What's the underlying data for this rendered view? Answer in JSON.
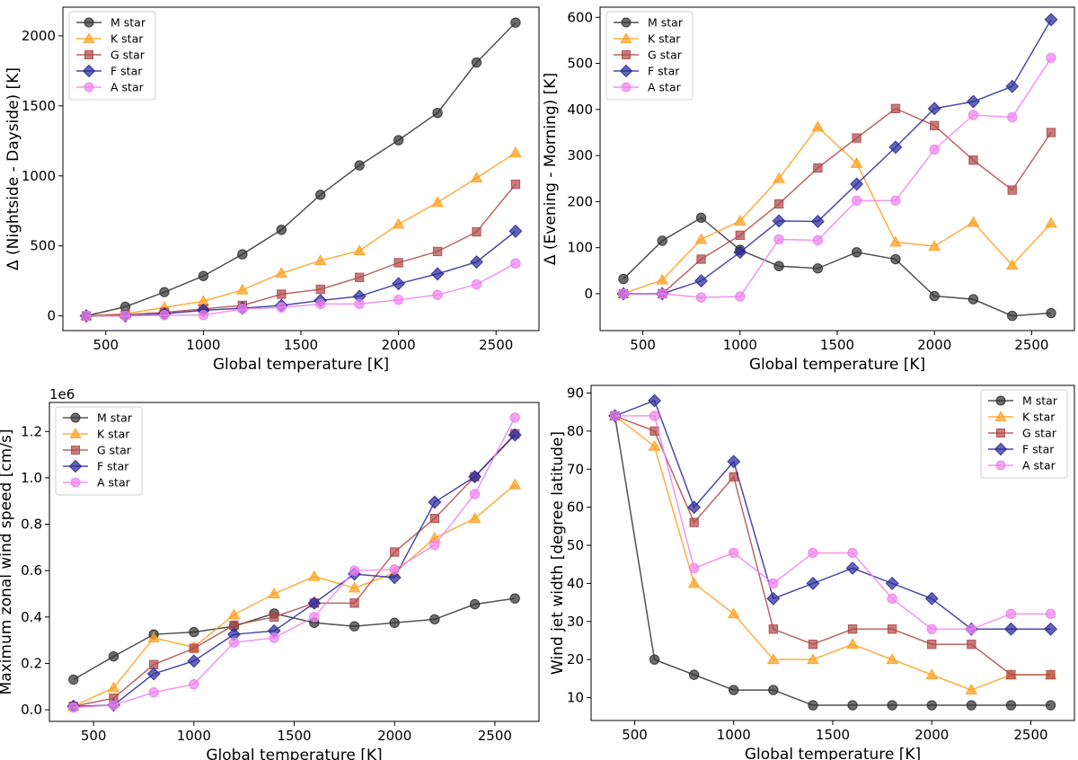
{
  "figure": {
    "series_styles": [
      {
        "name": "M star",
        "color": "#333333",
        "marker": "circle"
      },
      {
        "name": "K star",
        "color": "#ff9f1c",
        "marker": "triangle"
      },
      {
        "name": "G star",
        "color": "#b04a4a",
        "marker": "square"
      },
      {
        "name": "F star",
        "color": "#2a2a9a",
        "marker": "diamond"
      },
      {
        "name": "A star",
        "color": "#ee82ee",
        "marker": "circle"
      }
    ]
  },
  "chart_data": [
    {
      "type": "line",
      "title": "",
      "xlabel": "Global temperature [K]",
      "ylabel": "Δ (Nightside - Dayside) [K]",
      "xlim": [
        280,
        2720
      ],
      "ylim": [
        -105,
        2205
      ],
      "xticks": [
        500,
        1000,
        1500,
        2000,
        2500
      ],
      "yticks": [
        0,
        500,
        1000,
        1500,
        2000
      ],
      "offset_text": "",
      "legend_position": "upper-left",
      "x": [
        400,
        600,
        800,
        1000,
        1200,
        1400,
        1600,
        1800,
        2000,
        2200,
        2400,
        2600
      ],
      "series": [
        {
          "name": "M star",
          "values": [
            0,
            65,
            170,
            285,
            440,
            615,
            865,
            1075,
            1255,
            1450,
            1810,
            2095
          ]
        },
        {
          "name": "K star",
          "values": [
            0,
            15,
            60,
            105,
            185,
            305,
            395,
            465,
            655,
            810,
            985,
            1165
          ]
        },
        {
          "name": "G star",
          "values": [
            0,
            10,
            25,
            50,
            75,
            155,
            190,
            275,
            380,
            460,
            600,
            940
          ]
        },
        {
          "name": "F star",
          "values": [
            0,
            0,
            15,
            40,
            55,
            75,
            110,
            140,
            230,
            300,
            385,
            605
          ]
        },
        {
          "name": "A star",
          "values": [
            0,
            0,
            5,
            5,
            50,
            60,
            85,
            85,
            115,
            150,
            225,
            375
          ]
        }
      ]
    },
    {
      "type": "line",
      "title": "",
      "xlabel": "Global temperature [K]",
      "ylabel": "Δ (Evening - Morning) [K]",
      "xlim": [
        280,
        2720
      ],
      "ylim": [
        -80,
        622
      ],
      "xticks": [
        500,
        1000,
        1500,
        2000,
        2500
      ],
      "yticks": [
        0,
        100,
        200,
        300,
        400,
        500,
        600
      ],
      "offset_text": "",
      "legend_position": "upper-left",
      "x": [
        400,
        600,
        800,
        1000,
        1200,
        1400,
        1600,
        1800,
        2000,
        2200,
        2400,
        2600
      ],
      "series": [
        {
          "name": "M star",
          "values": [
            32,
            115,
            165,
            95,
            60,
            55,
            90,
            75,
            -5,
            -12,
            -48,
            -42
          ]
        },
        {
          "name": "K star",
          "values": [
            0,
            30,
            118,
            158,
            250,
            362,
            283,
            112,
            103,
            155,
            62,
            153
          ]
        },
        {
          "name": "G star",
          "values": [
            0,
            0,
            75,
            127,
            195,
            273,
            338,
            402,
            365,
            290,
            225,
            350
          ]
        },
        {
          "name": "F star",
          "values": [
            0,
            0,
            28,
            90,
            158,
            157,
            238,
            318,
            402,
            417,
            450,
            595
          ]
        },
        {
          "name": "A star",
          "values": [
            0,
            0,
            -8,
            -6,
            118,
            116,
            202,
            202,
            313,
            388,
            383,
            512
          ]
        }
      ]
    },
    {
      "type": "line",
      "title": "",
      "xlabel": "Global temperature [K]",
      "ylabel": "Maximum zonal wind speed [cm/s]",
      "xlim": [
        280,
        2720
      ],
      "ylim": [
        -0.05,
        1.325
      ],
      "xticks": [
        500,
        1000,
        1500,
        2000,
        2500
      ],
      "yticks": [
        0.0,
        0.2,
        0.4,
        0.6,
        0.8,
        1.0,
        1.2
      ],
      "ytick_labels": [
        "0.0",
        "0.2",
        "0.4",
        "0.6",
        "0.8",
        "1.0",
        "1.2"
      ],
      "offset_text": "1e6",
      "legend_position": "upper-left",
      "x": [
        400,
        600,
        800,
        1000,
        1200,
        1400,
        1600,
        1800,
        2000,
        2200,
        2400,
        2600
      ],
      "series": [
        {
          "name": "M star",
          "values": [
            0.13,
            0.23,
            0.325,
            0.335,
            0.36,
            0.415,
            0.375,
            0.36,
            0.375,
            0.39,
            0.455,
            0.48
          ]
        },
        {
          "name": "K star",
          "values": [
            0.015,
            0.095,
            0.31,
            0.27,
            0.41,
            0.5,
            0.575,
            0.525,
            0.59,
            0.74,
            0.825,
            0.97
          ]
        },
        {
          "name": "G star",
          "values": [
            0.015,
            0.05,
            0.195,
            0.265,
            0.365,
            0.4,
            0.46,
            0.46,
            0.68,
            0.825,
            1.005,
            1.19
          ]
        },
        {
          "name": "F star",
          "values": [
            0.015,
            0.02,
            0.155,
            0.21,
            0.325,
            0.34,
            0.46,
            0.585,
            0.57,
            0.895,
            1.005,
            1.185
          ]
        },
        {
          "name": "A star",
          "values": [
            0.01,
            0.02,
            0.075,
            0.11,
            0.29,
            0.31,
            0.4,
            0.6,
            0.605,
            0.71,
            0.93,
            1.26
          ]
        }
      ]
    },
    {
      "type": "line",
      "title": "",
      "xlabel": "Global temperature [K]",
      "ylabel": "Wind jet width [degree latitude]",
      "xlim": [
        280,
        2720
      ],
      "ylim": [
        4,
        92
      ],
      "xticks": [
        500,
        1000,
        1500,
        2000,
        2500
      ],
      "yticks": [
        10,
        20,
        30,
        40,
        50,
        60,
        70,
        80,
        90
      ],
      "offset_text": "",
      "legend_position": "upper-right",
      "x": [
        400,
        600,
        800,
        1000,
        1200,
        1400,
        1600,
        1800,
        2000,
        2200,
        2400,
        2600
      ],
      "series": [
        {
          "name": "M star",
          "values": [
            84,
            20,
            16,
            12,
            12,
            8,
            8,
            8,
            8,
            8,
            8,
            8
          ]
        },
        {
          "name": "K star",
          "values": [
            84,
            76,
            40,
            32,
            20,
            20,
            24,
            20,
            16,
            12,
            16,
            16
          ]
        },
        {
          "name": "G star",
          "values": [
            84,
            80,
            56,
            68,
            28,
            24,
            28,
            28,
            24,
            24,
            16,
            16
          ]
        },
        {
          "name": "F star",
          "values": [
            84,
            88,
            60,
            72,
            36,
            40,
            44,
            40,
            36,
            28,
            28,
            28
          ]
        },
        {
          "name": "A star",
          "values": [
            84,
            84,
            44,
            48,
            40,
            48,
            48,
            36,
            28,
            28,
            32,
            32
          ]
        }
      ]
    }
  ]
}
